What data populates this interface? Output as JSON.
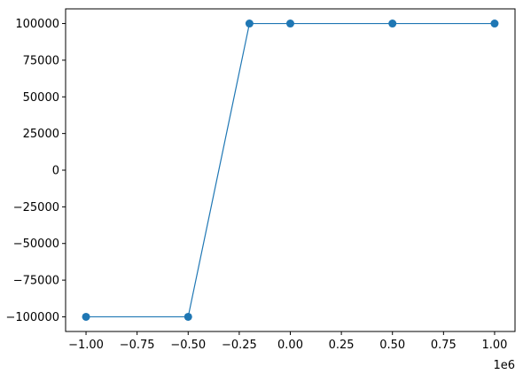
{
  "chart_data": {
    "type": "line",
    "title": "",
    "xlabel": "",
    "ylabel": "",
    "x_offset_label": "1e6",
    "xlim": [
      -1.1,
      1.1
    ],
    "ylim": [
      -110000,
      110000
    ],
    "x_ticks": [
      -1.0,
      -0.75,
      -0.5,
      -0.25,
      0.0,
      0.25,
      0.5,
      0.75,
      1.0
    ],
    "x_tick_labels": [
      "−1.00",
      "−0.75",
      "−0.50",
      "−0.25",
      "0.00",
      "0.25",
      "0.50",
      "0.75",
      "1.00"
    ],
    "y_ticks": [
      -100000,
      -75000,
      -50000,
      -25000,
      0,
      25000,
      50000,
      75000,
      100000
    ],
    "y_tick_labels": [
      "−100000",
      "−75000",
      "−50000",
      "−25000",
      "0",
      "25000",
      "50000",
      "75000",
      "100000"
    ],
    "grid": false,
    "series": [
      {
        "color": "#1f77b4",
        "marker": "circle",
        "x": [
          -1.0,
          -0.5,
          -0.2,
          0.0,
          0.5,
          1.0
        ],
        "y": [
          -100000,
          -100000,
          100000,
          100000,
          100000,
          100000
        ]
      }
    ]
  }
}
